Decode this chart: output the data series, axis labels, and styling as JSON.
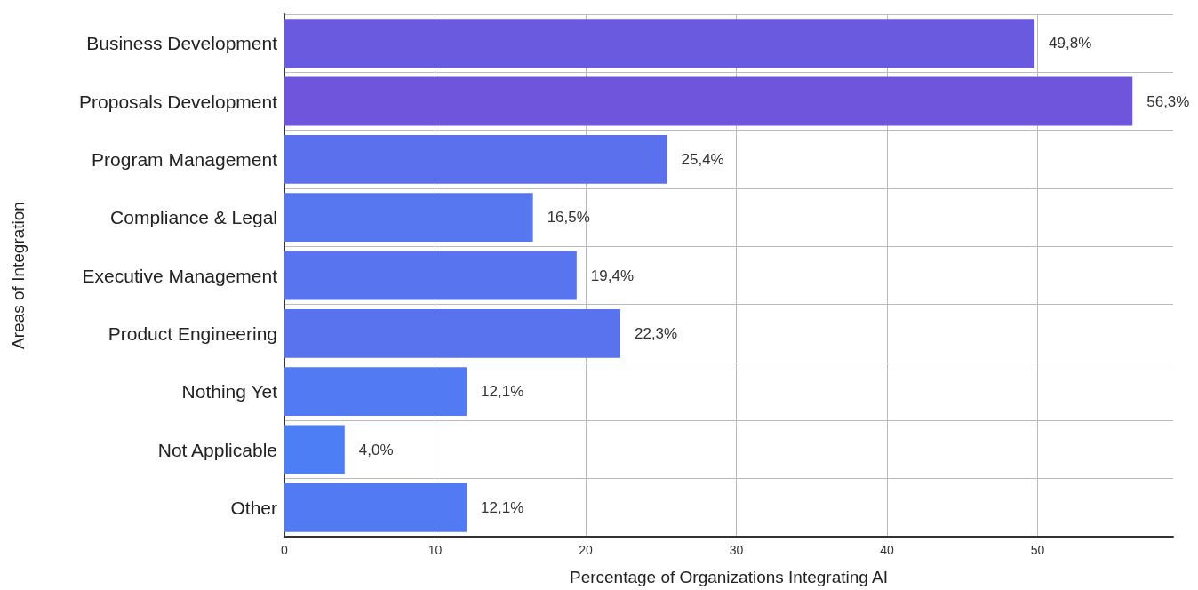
{
  "chart_data": {
    "type": "bar",
    "orientation": "horizontal",
    "xlabel": "Percentage of Organizations Integrating AI",
    "ylabel": "Areas of Integration",
    "categories": [
      "Business Development",
      "Proposals Development",
      "Program Management",
      "Compliance & Legal",
      "Executive Management",
      "Product Engineering",
      "Nothing Yet",
      "Not Applicable",
      "Other"
    ],
    "values": [
      49.8,
      56.3,
      25.4,
      16.5,
      19.4,
      22.3,
      12.1,
      4.0,
      12.1
    ],
    "value_labels": [
      "49,8%",
      "56,3%",
      "25,4%",
      "16,5%",
      "19,4%",
      "22,3%",
      "12,1%",
      "4,0%",
      "12,1%"
    ],
    "colors": [
      "#6a5ae0",
      "#6f55dc",
      "#5a70ec",
      "#5677f0",
      "#5874ee",
      "#5972ed",
      "#527af3",
      "#4d7ef6",
      "#527af3"
    ],
    "xlim": [
      0,
      59
    ],
    "xticks": [
      0,
      10,
      20,
      30,
      40,
      50
    ],
    "grid": true
  }
}
